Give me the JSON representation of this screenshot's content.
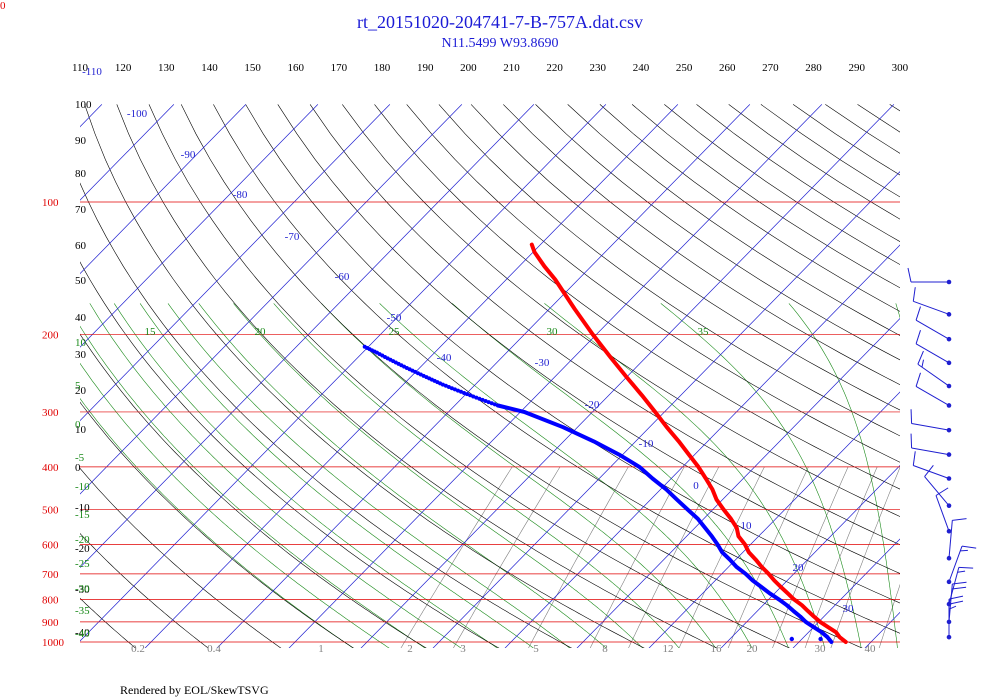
{
  "title": "rt_20151020-204741-7-B-757A.dat.csv",
  "subtitle": "N11.5499 W93.8690",
  "footer": "Rendered by EOL/SkewTSVG",
  "corner_label": "0",
  "colors": {
    "isobar": "#e00000",
    "isotherm": "#1f1fd0",
    "dry_adiabat": "#000000",
    "moist_adiabat": "#1a8a1a",
    "mixing_ratio": "#808080",
    "temperature": "#ff0000",
    "dewpoint": "#0000ff",
    "wind": "#1f1fd0"
  },
  "chart_data": {
    "type": "line",
    "chart_kind": "skew-t log-p diagram",
    "y_scale": "log",
    "pressure_range_hpa": [
      1000,
      100
    ],
    "pressure_ticks": [
      "100",
      "200",
      "300",
      "400",
      "500",
      "600",
      "700",
      "800",
      "900",
      "1000"
    ],
    "pressure_tick_values": [
      100,
      200,
      300,
      400,
      500,
      600,
      700,
      800,
      900,
      1000
    ],
    "theta_ticks": [
      "110",
      "120",
      "130",
      "140",
      "150",
      "160",
      "170",
      "180",
      "190",
      "200",
      "210",
      "220",
      "230",
      "240",
      "250",
      "260",
      "270",
      "280",
      "290",
      "300"
    ],
    "theta_left_labels": [
      "100",
      "90",
      "80",
      "70",
      "60",
      "50",
      "40",
      "30",
      "20",
      "10",
      "0",
      "-10",
      "-20",
      "-30",
      "-40"
    ],
    "isotherm_labels": [
      "-110",
      "-100",
      "-90",
      "-80",
      "-70",
      "-60",
      "-50",
      "-40",
      "-30",
      "-20",
      "-10",
      "0",
      "10",
      "20",
      "30"
    ],
    "moist_top_labels": [
      "15",
      "20",
      "25",
      "30",
      "35"
    ],
    "moist_left_labels": [
      "10",
      "5",
      "0",
      "-5",
      "-10",
      "-15",
      "-20",
      "-25",
      "-30",
      "-35",
      "-40"
    ],
    "mixing_ratio_labels": [
      "0.2",
      "0.4",
      "1",
      "2",
      "3",
      "5",
      "8",
      "12",
      "16",
      "20",
      "30",
      "40"
    ],
    "temperature_profile": [
      {
        "p": 1000,
        "t": 26.5
      },
      {
        "p": 975,
        "t": 25.0
      },
      {
        "p": 950,
        "t": 23.8
      },
      {
        "p": 925,
        "t": 22.0
      },
      {
        "p": 900,
        "t": 20.2
      },
      {
        "p": 875,
        "t": 18.6
      },
      {
        "p": 850,
        "t": 17.0
      },
      {
        "p": 825,
        "t": 15.4
      },
      {
        "p": 800,
        "t": 13.5
      },
      {
        "p": 775,
        "t": 11.8
      },
      {
        "p": 750,
        "t": 10.0
      },
      {
        "p": 725,
        "t": 8.2
      },
      {
        "p": 700,
        "t": 6.5
      },
      {
        "p": 675,
        "t": 4.6
      },
      {
        "p": 650,
        "t": 2.8
      },
      {
        "p": 625,
        "t": 0.8
      },
      {
        "p": 600,
        "t": -0.8
      },
      {
        "p": 575,
        "t": -2.8
      },
      {
        "p": 550,
        "t": -4.2
      },
      {
        "p": 525,
        "t": -6.2
      },
      {
        "p": 500,
        "t": -8.5
      },
      {
        "p": 475,
        "t": -10.8
      },
      {
        "p": 450,
        "t": -12.8
      },
      {
        "p": 425,
        "t": -15.2
      },
      {
        "p": 400,
        "t": -17.8
      },
      {
        "p": 375,
        "t": -20.8
      },
      {
        "p": 350,
        "t": -24.0
      },
      {
        "p": 325,
        "t": -27.6
      },
      {
        "p": 300,
        "t": -31.3
      },
      {
        "p": 275,
        "t": -35.4
      },
      {
        "p": 250,
        "t": -40.0
      },
      {
        "p": 225,
        "t": -45.0
      },
      {
        "p": 200,
        "t": -50.5
      },
      {
        "p": 175,
        "t": -56.5
      },
      {
        "p": 150,
        "t": -63.2
      },
      {
        "p": 140,
        "t": -66.5
      },
      {
        "p": 130,
        "t": -69.8
      },
      {
        "p": 125,
        "t": -71.2
      }
    ],
    "dewpoint_profile": [
      {
        "p": 1000,
        "t": 24.5
      },
      {
        "p": 975,
        "t": 23.3
      },
      {
        "p": 950,
        "t": 21.8
      },
      {
        "p": 925,
        "t": 20.0
      },
      {
        "p": 900,
        "t": 18.2
      },
      {
        "p": 875,
        "t": 16.7
      },
      {
        "p": 850,
        "t": 15.0
      },
      {
        "p": 825,
        "t": 13.3
      },
      {
        "p": 800,
        "t": 11.4
      },
      {
        "p": 775,
        "t": 9.3
      },
      {
        "p": 750,
        "t": 7.3
      },
      {
        "p": 725,
        "t": 5.2
      },
      {
        "p": 700,
        "t": 3.3
      },
      {
        "p": 675,
        "t": 1.1
      },
      {
        "p": 650,
        "t": -0.8
      },
      {
        "p": 625,
        "t": -2.9
      },
      {
        "p": 600,
        "t": -4.6
      },
      {
        "p": 575,
        "t": -6.5
      },
      {
        "p": 550,
        "t": -8.6
      },
      {
        "p": 525,
        "t": -10.8
      },
      {
        "p": 500,
        "t": -13.5
      },
      {
        "p": 475,
        "t": -16.3
      },
      {
        "p": 450,
        "t": -19.2
      },
      {
        "p": 425,
        "t": -22.6
      },
      {
        "p": 400,
        "t": -26.0
      },
      {
        "p": 375,
        "t": -30.5
      },
      {
        "p": 350,
        "t": -35.8
      },
      {
        "p": 325,
        "t": -42.0
      },
      {
        "p": 300,
        "t": -49.5
      },
      {
        "p": 290,
        "t": -54.0
      }
    ],
    "dewpoint_dotted_profile": [
      {
        "p": 290,
        "t": -54.0
      },
      {
        "p": 280,
        "t": -57.5
      },
      {
        "p": 270,
        "t": -61.0
      },
      {
        "p": 260,
        "t": -64.5
      },
      {
        "p": 250,
        "t": -67.8
      },
      {
        "p": 240,
        "t": -71.2
      },
      {
        "p": 230,
        "t": -74.6
      },
      {
        "p": 220,
        "t": -78.0
      },
      {
        "p": 212,
        "t": -81.0
      }
    ],
    "surface_markers": [
      {
        "p": 1000,
        "t": 19.0
      },
      {
        "p": 1000,
        "t": 23.0
      }
    ],
    "wind_barbs": [
      {
        "p": 152,
        "speed_kt": 10,
        "direction_deg": 270
      },
      {
        "p": 180,
        "speed_kt": 10,
        "direction_deg": 290
      },
      {
        "p": 205,
        "speed_kt": 10,
        "direction_deg": 300
      },
      {
        "p": 232,
        "speed_kt": 10,
        "direction_deg": 300
      },
      {
        "p": 262,
        "speed_kt": 15,
        "direction_deg": 305
      },
      {
        "p": 290,
        "speed_kt": 10,
        "direction_deg": 300
      },
      {
        "p": 330,
        "speed_kt": 10,
        "direction_deg": 280
      },
      {
        "p": 375,
        "speed_kt": 10,
        "direction_deg": 280
      },
      {
        "p": 425,
        "speed_kt": 10,
        "direction_deg": 290
      },
      {
        "p": 490,
        "speed_kt": 10,
        "direction_deg": 320
      },
      {
        "p": 560,
        "speed_kt": 10,
        "direction_deg": 340
      },
      {
        "p": 645,
        "speed_kt": 10,
        "direction_deg": 5
      },
      {
        "p": 730,
        "speed_kt": 15,
        "direction_deg": 20
      },
      {
        "p": 820,
        "speed_kt": 15,
        "direction_deg": 15
      },
      {
        "p": 900,
        "speed_kt": 20,
        "direction_deg": 5
      },
      {
        "p": 975,
        "speed_kt": 25,
        "direction_deg": 0
      }
    ]
  }
}
